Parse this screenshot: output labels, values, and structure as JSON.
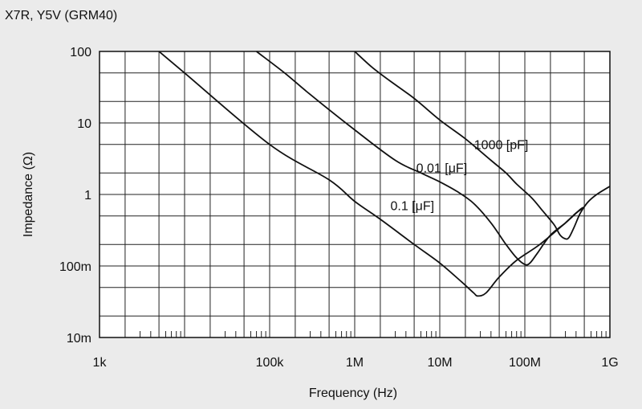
{
  "chart_data": {
    "type": "line",
    "title": "X7R, Y5V  (GRM40)",
    "xlabel": "Frequency (Hz)",
    "ylabel": "Impedance (Ω)",
    "x_scale": "log",
    "y_scale": "log",
    "xlim": [
      1000,
      1000000000
    ],
    "ylim": [
      0.01,
      100
    ],
    "x_ticks": [
      {
        "value": 1000,
        "label": "1k"
      },
      {
        "value": 100000,
        "label": "100k"
      },
      {
        "value": 1000000,
        "label": "1M"
      },
      {
        "value": 10000000,
        "label": "10M"
      },
      {
        "value": 100000000,
        "label": "100M"
      },
      {
        "value": 1000000000,
        "label": "1G"
      }
    ],
    "y_ticks": [
      {
        "value": 100,
        "label": "100"
      },
      {
        "value": 10,
        "label": "10"
      },
      {
        "value": 1,
        "label": "1"
      },
      {
        "value": 0.1,
        "label": "100m"
      },
      {
        "value": 0.01,
        "label": "10m"
      }
    ],
    "grid": true,
    "series": [
      {
        "name": "1000 [pF]",
        "points": [
          [
            1000000,
            100
          ],
          [
            1600000,
            60
          ],
          [
            2500000,
            40
          ],
          [
            5000000,
            22
          ],
          [
            10000000,
            11
          ],
          [
            20000000,
            6
          ],
          [
            40000000,
            3
          ],
          [
            60000000,
            2
          ],
          [
            80000000,
            1.4
          ],
          [
            120000000,
            0.9
          ],
          [
            160000000,
            0.6
          ],
          [
            220000000,
            0.38
          ],
          [
            260000000,
            0.27
          ],
          [
            300000000,
            0.24
          ],
          [
            330000000,
            0.25
          ],
          [
            380000000,
            0.35
          ],
          [
            450000000,
            0.55
          ],
          [
            550000000,
            0.78
          ],
          [
            700000000,
            1.0
          ],
          [
            1000000000,
            1.3
          ]
        ]
      },
      {
        "name": "0.01 [μF]",
        "points": [
          [
            70000,
            100
          ],
          [
            150000,
            50
          ],
          [
            300000,
            25
          ],
          [
            1000000,
            8
          ],
          [
            3000000,
            3
          ],
          [
            6000000,
            2
          ],
          [
            10000000,
            1.5
          ],
          [
            16000000,
            1.1
          ],
          [
            25000000,
            0.75
          ],
          [
            40000000,
            0.4
          ],
          [
            60000000,
            0.2
          ],
          [
            80000000,
            0.13
          ],
          [
            100000000,
            0.105
          ],
          [
            115000000,
            0.11
          ],
          [
            140000000,
            0.15
          ],
          [
            200000000,
            0.27
          ],
          [
            300000000,
            0.4
          ],
          [
            400000000,
            0.55
          ],
          [
            500000000,
            0.66
          ]
        ]
      },
      {
        "name": "0.1 [μF]",
        "points": [
          [
            5000,
            100
          ],
          [
            10000,
            50
          ],
          [
            100000,
            5
          ],
          [
            500000,
            1.6
          ],
          [
            1000000,
            0.8
          ],
          [
            2000000,
            0.45
          ],
          [
            5000000,
            0.2
          ],
          [
            10000000,
            0.11
          ],
          [
            18000000,
            0.06
          ],
          [
            25000000,
            0.042
          ],
          [
            28000000,
            0.038
          ],
          [
            35000000,
            0.042
          ],
          [
            50000000,
            0.07
          ],
          [
            80000000,
            0.12
          ],
          [
            150000000,
            0.2
          ],
          [
            300000000,
            0.4
          ],
          [
            450000000,
            0.62
          ],
          [
            500000000,
            0.66
          ]
        ]
      }
    ]
  }
}
